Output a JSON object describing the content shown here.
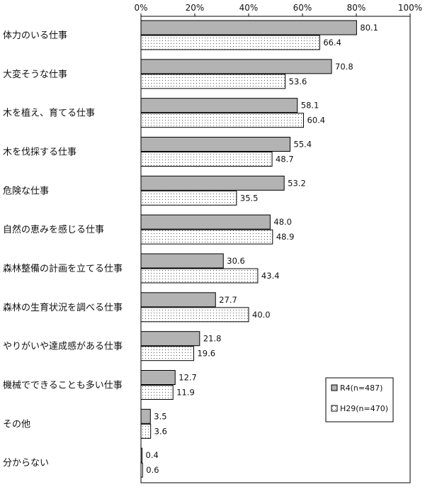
{
  "chart_data": {
    "type": "bar",
    "orientation": "horizontal",
    "categories": [
      "体力のいる仕事",
      "大変そうな仕事",
      "木を植え、育てる仕事",
      "木を伐採する仕事",
      "危険な仕事",
      "自然の恵みを感じる仕事",
      "森林整備の計画を立てる仕事",
      "森林の生育状況を調べる仕事",
      "やりがいや達成感がある仕事",
      "機械でできることも多い仕事",
      "その他",
      "分からない"
    ],
    "series": [
      {
        "name": "R4(n=487)",
        "values": [
          80.1,
          70.8,
          58.1,
          55.4,
          53.2,
          48.0,
          30.6,
          27.7,
          21.8,
          12.7,
          3.5,
          0.4
        ],
        "labels": [
          "80.1",
          "70.8",
          "58.1",
          "55.4",
          "53.2",
          "48.0",
          "30.6",
          "27.7",
          "21.8",
          "12.7",
          "3.5",
          "0.4"
        ],
        "fill": "#b3b3b3",
        "pattern": "solid"
      },
      {
        "name": "H29(n=470)",
        "values": [
          66.4,
          53.6,
          60.4,
          48.7,
          35.5,
          48.9,
          43.4,
          40.0,
          19.6,
          11.9,
          3.6,
          0.6
        ],
        "labels": [
          "66.4",
          "53.6",
          "60.4",
          "48.7",
          "35.5",
          "48.9",
          "43.4",
          "40.0",
          "19.6",
          "11.9",
          "3.6",
          "0.6"
        ],
        "fill": "#ffffff",
        "pattern": "dotted"
      }
    ],
    "xlim": [
      0,
      100
    ],
    "xticks": [
      "0%",
      "20%",
      "40%",
      "60%",
      "80%",
      "100%"
    ],
    "grid": false,
    "legend_position": "bottom-right",
    "title": "",
    "xlabel": "",
    "ylabel": ""
  }
}
